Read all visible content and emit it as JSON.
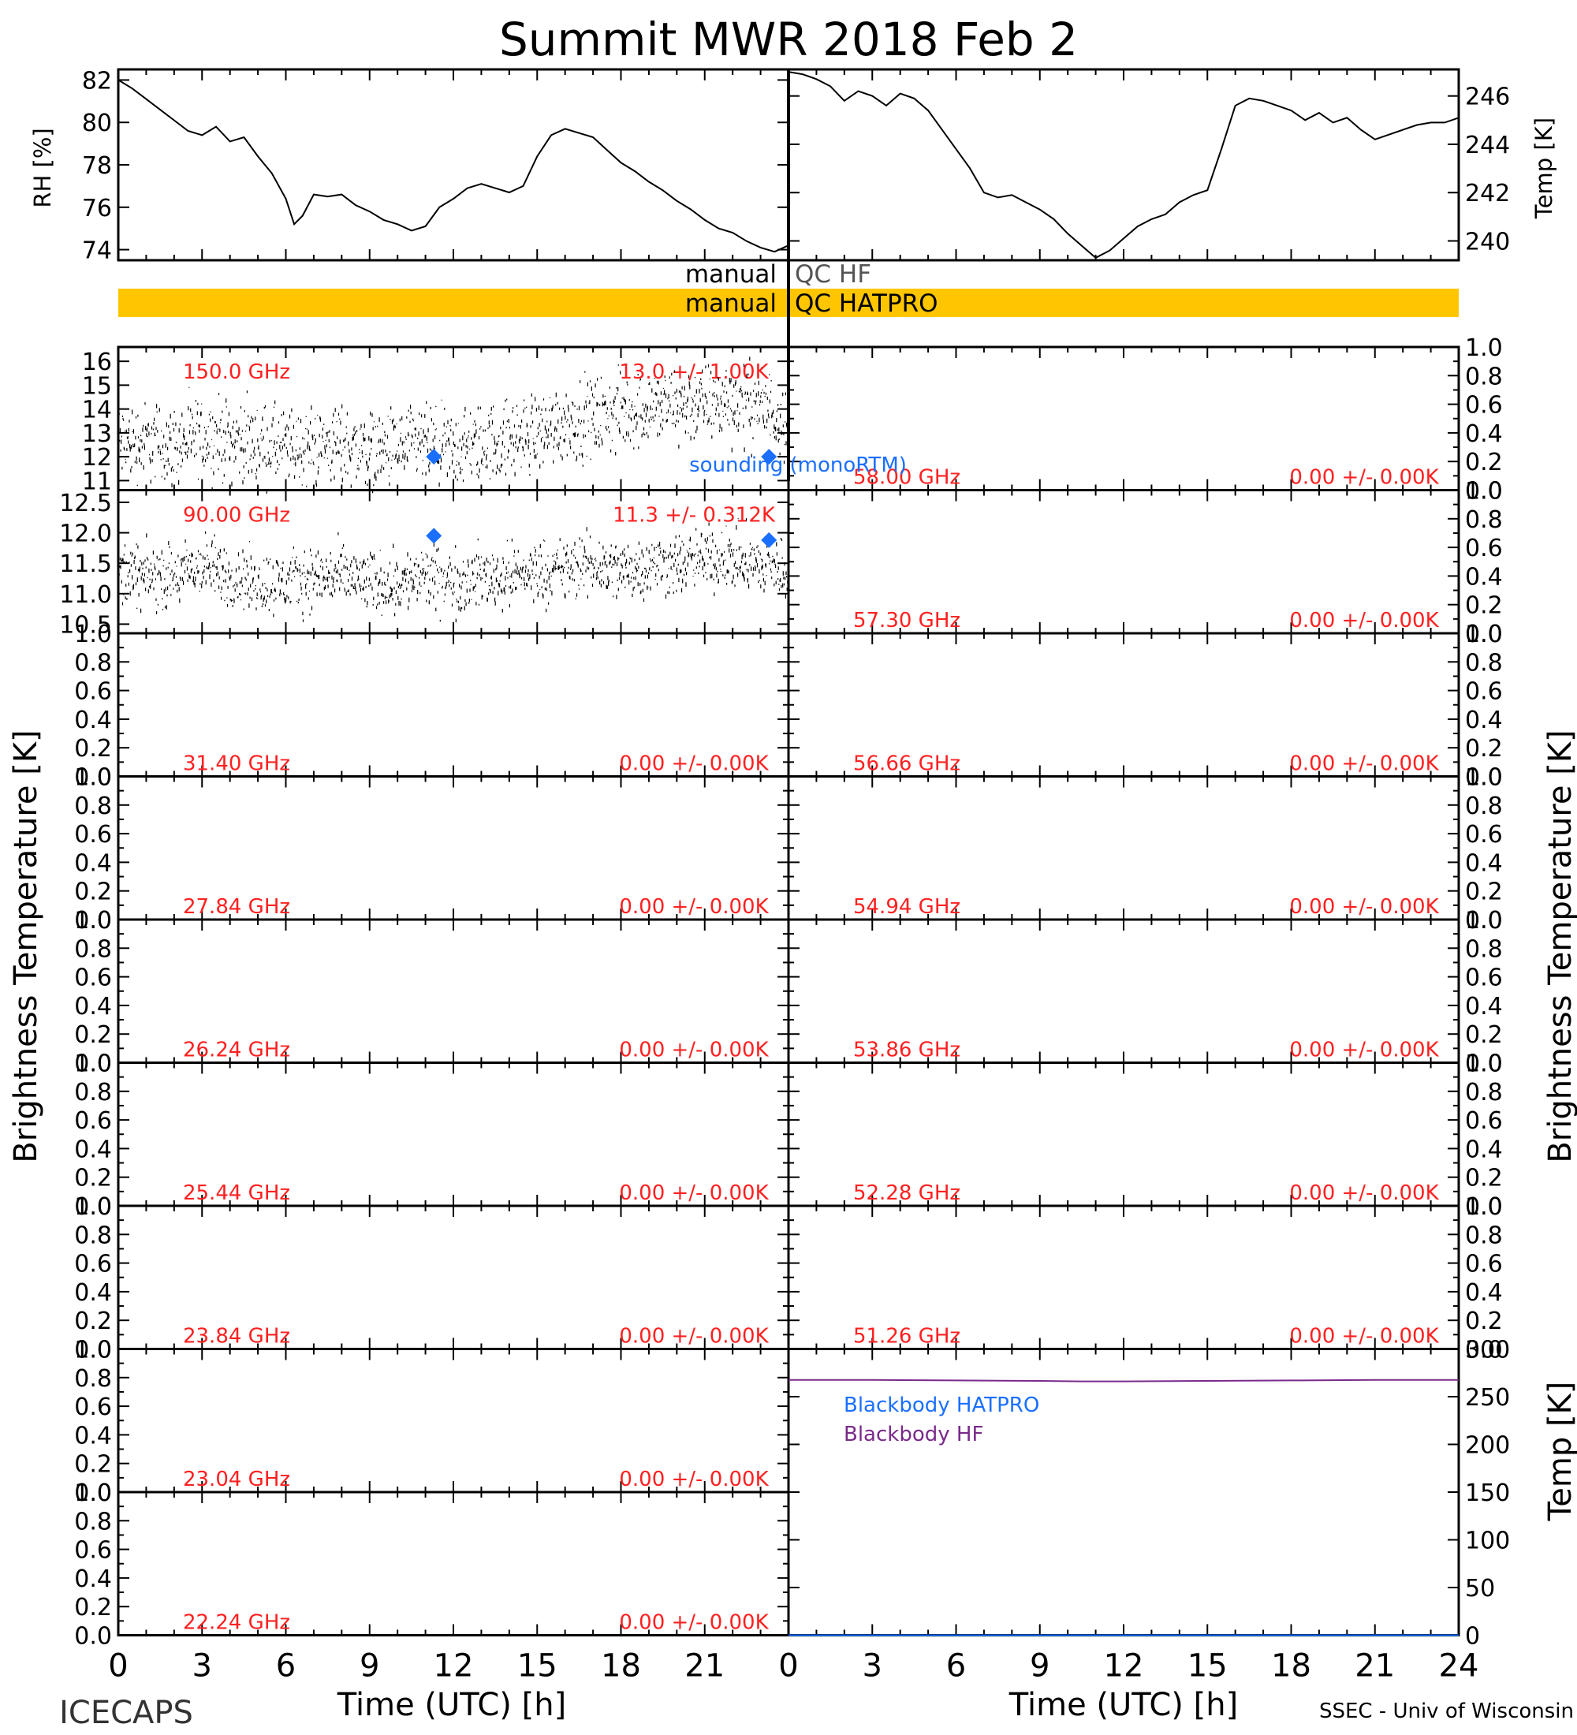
{
  "title": "Summit MWR 2018 Feb  2",
  "footer_left": "ICECAPS",
  "footer_right": "SSEC - Univ of Wisconsin",
  "colors": {
    "axis": "#000000",
    "trace": "#000000",
    "annotation_red": "#ff2020",
    "sounding_blue": "#1a6fff",
    "qc_bar": "#ffc600",
    "bb_hatpro": "#1a6fff",
    "bb_hf": "#7a2a8a"
  },
  "qc": {
    "hf_left": "manual",
    "hf_right": "QC HF",
    "hatpro_left": "manual",
    "hatpro_right": "QC HATPRO"
  },
  "labels": {
    "rh_ylabel": "RH [%]",
    "temp_ylabel": "Temp [K]",
    "tb_ylabel_left": "Brightness Temperature [K]",
    "tb_ylabel_right": "Brightness Temperature [K]",
    "bb_ylabel": "Temp [K]",
    "xlabel_left": "Time (UTC) [h]",
    "xlabel_right": "Time (UTC) [h]",
    "sounding_legend": "sounding (monoRTM)",
    "bb_hatpro": "Blackbody HATPRO",
    "bb_hf": "Blackbody HF"
  },
  "chart_data": [
    {
      "id": "rh",
      "type": "line",
      "title": "",
      "xlabel": "",
      "ylabel": "RH [%]",
      "xlim": [
        0,
        24
      ],
      "ylim": [
        73.5,
        82.5
      ],
      "yticks": [
        74,
        76,
        78,
        80,
        82
      ],
      "x": [
        0,
        0.5,
        1,
        1.5,
        2,
        2.5,
        3,
        3.5,
        4,
        4.5,
        5,
        5.5,
        6,
        6.3,
        6.6,
        7,
        7.5,
        8,
        8.5,
        9,
        9.5,
        10,
        10.5,
        11,
        11.5,
        12,
        12.5,
        13,
        13.5,
        14,
        14.5,
        15,
        15.5,
        16,
        16.5,
        17,
        17.5,
        18,
        18.5,
        19,
        19.5,
        20,
        20.5,
        21,
        21.5,
        22,
        22.5,
        23,
        23.5,
        24
      ],
      "y": [
        82.0,
        81.6,
        81.1,
        80.6,
        80.1,
        79.6,
        79.4,
        79.8,
        79.1,
        79.3,
        78.4,
        77.6,
        76.4,
        75.2,
        75.6,
        76.6,
        76.5,
        76.6,
        76.1,
        75.8,
        75.4,
        75.2,
        74.9,
        75.1,
        76.0,
        76.4,
        76.9,
        77.1,
        76.9,
        76.7,
        77.0,
        78.4,
        79.4,
        79.7,
        79.5,
        79.3,
        78.7,
        78.1,
        77.7,
        77.2,
        76.8,
        76.3,
        75.9,
        75.4,
        75.0,
        74.8,
        74.4,
        74.1,
        73.9,
        74.2
      ]
    },
    {
      "id": "temp",
      "type": "line",
      "title": "",
      "xlabel": "",
      "ylabel": "Temp [K]",
      "xlim": [
        0,
        24
      ],
      "ylim": [
        239.2,
        247.1
      ],
      "yticks": [
        240,
        242,
        244,
        246
      ],
      "x": [
        0,
        0.5,
        1,
        1.5,
        2,
        2.5,
        3,
        3.5,
        4,
        4.5,
        5,
        5.5,
        6,
        6.5,
        7,
        7.5,
        8,
        8.5,
        9,
        9.5,
        10,
        10.5,
        11,
        11.5,
        12,
        12.5,
        13,
        13.5,
        14,
        14.5,
        15,
        15.5,
        16,
        16.5,
        17,
        17.5,
        18,
        18.5,
        19,
        19.5,
        20,
        20.5,
        21,
        21.5,
        22,
        22.5,
        23,
        23.5,
        24
      ],
      "y": [
        247.0,
        246.9,
        246.7,
        246.4,
        245.8,
        246.2,
        246.0,
        245.6,
        246.1,
        245.9,
        245.4,
        244.6,
        243.8,
        243.0,
        242.0,
        241.8,
        241.9,
        241.6,
        241.3,
        240.9,
        240.3,
        239.8,
        239.3,
        239.6,
        240.1,
        240.6,
        240.9,
        241.1,
        241.6,
        241.9,
        242.1,
        243.8,
        245.6,
        245.9,
        245.8,
        245.6,
        245.4,
        245.0,
        245.3,
        244.9,
        245.1,
        244.6,
        244.2,
        244.4,
        244.6,
        244.8,
        244.9,
        244.9,
        245.1
      ]
    },
    {
      "id": "tb_150",
      "type": "scatter",
      "title": "150.0 GHz",
      "stats": "13.0 +/- 1.00K",
      "xlim": [
        0,
        24
      ],
      "ylim": [
        10.6,
        16.6
      ],
      "yticks": [
        11,
        12,
        13,
        14,
        15,
        16
      ],
      "x": [
        0,
        1,
        2,
        3,
        4,
        5,
        6,
        7,
        8,
        9,
        10,
        11,
        12,
        13,
        14,
        15,
        16,
        17,
        18,
        19,
        20,
        21,
        22,
        23,
        24
      ],
      "y": [
        12.6,
        12.7,
        12.5,
        12.9,
        12.8,
        12.6,
        12.4,
        12.5,
        12.6,
        12.3,
        12.4,
        12.5,
        12.3,
        12.6,
        12.8,
        13.1,
        13.5,
        13.7,
        13.9,
        14.1,
        14.2,
        14.3,
        14.4,
        14.2,
        13.6
      ],
      "spread": 1.0,
      "sounding": {
        "x": [
          11.3,
          23.3
        ],
        "y": [
          12.0,
          12.0
        ]
      }
    },
    {
      "id": "tb_90",
      "type": "scatter",
      "title": "90.00 GHz",
      "stats": "11.3 +/- 0.312K",
      "xlim": [
        0,
        24
      ],
      "ylim": [
        10.35,
        12.7
      ],
      "yticks": [
        10.5,
        11.0,
        11.5,
        12.0,
        12.5
      ],
      "x": [
        0,
        1,
        2,
        3,
        4,
        5,
        6,
        7,
        8,
        9,
        10,
        11,
        12,
        13,
        14,
        15,
        16,
        17,
        18,
        19,
        20,
        21,
        22,
        23,
        24
      ],
      "y": [
        11.4,
        11.3,
        11.3,
        11.5,
        11.3,
        11.2,
        11.2,
        11.3,
        11.3,
        11.2,
        11.2,
        11.3,
        11.2,
        11.3,
        11.3,
        11.4,
        11.4,
        11.5,
        11.4,
        11.5,
        11.5,
        11.6,
        11.6,
        11.5,
        11.4
      ],
      "spread": 0.312,
      "sounding": {
        "x": [
          11.3,
          23.3
        ],
        "y": [
          11.95,
          11.88
        ]
      }
    },
    {
      "id": "tb_31",
      "type": "line",
      "title": "31.40 GHz",
      "stats": "0.00 +/- 0.00K",
      "xlim": [
        0,
        24
      ],
      "ylim": [
        0,
        1
      ],
      "yticks": [
        0.0,
        0.2,
        0.4,
        0.6,
        0.8,
        1.0
      ]
    },
    {
      "id": "tb_27",
      "type": "line",
      "title": "27.84 GHz",
      "stats": "0.00 +/- 0.00K",
      "xlim": [
        0,
        24
      ],
      "ylim": [
        0,
        1
      ],
      "yticks": [
        0.0,
        0.2,
        0.4,
        0.6,
        0.8,
        1.0
      ]
    },
    {
      "id": "tb_26",
      "type": "line",
      "title": "26.24 GHz",
      "stats": "0.00 +/- 0.00K",
      "xlim": [
        0,
        24
      ],
      "ylim": [
        0,
        1
      ],
      "yticks": [
        0.0,
        0.2,
        0.4,
        0.6,
        0.8,
        1.0
      ]
    },
    {
      "id": "tb_25",
      "type": "line",
      "title": "25.44 GHz",
      "stats": "0.00 +/- 0.00K",
      "xlim": [
        0,
        24
      ],
      "ylim": [
        0,
        1
      ],
      "yticks": [
        0.0,
        0.2,
        0.4,
        0.6,
        0.8,
        1.0
      ]
    },
    {
      "id": "tb_238",
      "type": "line",
      "title": "23.84 GHz",
      "stats": "0.00 +/- 0.00K",
      "xlim": [
        0,
        24
      ],
      "ylim": [
        0,
        1
      ],
      "yticks": [
        0.0,
        0.2,
        0.4,
        0.6,
        0.8,
        1.0
      ]
    },
    {
      "id": "tb_230",
      "type": "line",
      "title": "23.04 GHz",
      "stats": "0.00 +/- 0.00K",
      "xlim": [
        0,
        24
      ],
      "ylim": [
        0,
        1
      ],
      "yticks": [
        0.0,
        0.2,
        0.4,
        0.6,
        0.8,
        1.0
      ]
    },
    {
      "id": "tb_222",
      "type": "line",
      "title": "22.24 GHz",
      "stats": "0.00 +/- 0.00K",
      "xlim": [
        0,
        24
      ],
      "ylim": [
        0,
        1
      ],
      "yticks": [
        0.0,
        0.2,
        0.4,
        0.6,
        0.8,
        1.0
      ],
      "xticks": [
        0,
        3,
        6,
        9,
        12,
        15,
        18,
        21
      ]
    },
    {
      "id": "tb_580",
      "type": "line",
      "title": "58.00 GHz",
      "stats": "0.00 +/- 0.00K",
      "xlim": [
        0,
        24
      ],
      "ylim": [
        0,
        1
      ],
      "yticks": [
        0.0,
        0.2,
        0.4,
        0.6,
        0.8,
        1.0
      ]
    },
    {
      "id": "tb_573",
      "type": "line",
      "title": "57.30 GHz",
      "stats": "0.00 +/- 0.00K",
      "xlim": [
        0,
        24
      ],
      "ylim": [
        0,
        1
      ],
      "yticks": [
        0.0,
        0.2,
        0.4,
        0.6,
        0.8,
        1.0
      ]
    },
    {
      "id": "tb_566",
      "type": "line",
      "title": "56.66 GHz",
      "stats": "0.00 +/- 0.00K",
      "xlim": [
        0,
        24
      ],
      "ylim": [
        0,
        1
      ],
      "yticks": [
        0.0,
        0.2,
        0.4,
        0.6,
        0.8,
        1.0
      ]
    },
    {
      "id": "tb_549",
      "type": "line",
      "title": "54.94 GHz",
      "stats": "0.00 +/- 0.00K",
      "xlim": [
        0,
        24
      ],
      "ylim": [
        0,
        1
      ],
      "yticks": [
        0.0,
        0.2,
        0.4,
        0.6,
        0.8,
        1.0
      ]
    },
    {
      "id": "tb_538",
      "type": "line",
      "title": "53.86 GHz",
      "stats": "0.00 +/- 0.00K",
      "xlim": [
        0,
        24
      ],
      "ylim": [
        0,
        1
      ],
      "yticks": [
        0.0,
        0.2,
        0.4,
        0.6,
        0.8,
        1.0
      ]
    },
    {
      "id": "tb_522",
      "type": "line",
      "title": "52.28 GHz",
      "stats": "0.00 +/- 0.00K",
      "xlim": [
        0,
        24
      ],
      "ylim": [
        0,
        1
      ],
      "yticks": [
        0.0,
        0.2,
        0.4,
        0.6,
        0.8,
        1.0
      ]
    },
    {
      "id": "tb_512",
      "type": "line",
      "title": "51.26 GHz",
      "stats": "0.00 +/- 0.00K",
      "xlim": [
        0,
        24
      ],
      "ylim": [
        0,
        1
      ],
      "yticks": [
        0.0,
        0.2,
        0.4,
        0.6,
        0.8,
        1.0
      ]
    },
    {
      "id": "blackbody",
      "type": "line",
      "title": "",
      "ylabel": "Temp [K]",
      "xlim": [
        0,
        24
      ],
      "ylim": [
        0,
        300
      ],
      "yticks": [
        0,
        50,
        100,
        150,
        200,
        250,
        300
      ],
      "xticks": [
        0,
        3,
        6,
        9,
        12,
        15,
        18,
        21,
        24
      ],
      "series": [
        {
          "name": "Blackbody HATPRO",
          "x": [
            0,
            24
          ],
          "y": [
            0,
            0
          ]
        },
        {
          "name": "Blackbody HF",
          "x": [
            0,
            3,
            6,
            9,
            10.5,
            12,
            15,
            18,
            21,
            24
          ],
          "y": [
            267.5,
            267.5,
            267.0,
            266.5,
            266.0,
            266.0,
            266.5,
            267.0,
            267.5,
            267.5
          ]
        }
      ]
    }
  ]
}
